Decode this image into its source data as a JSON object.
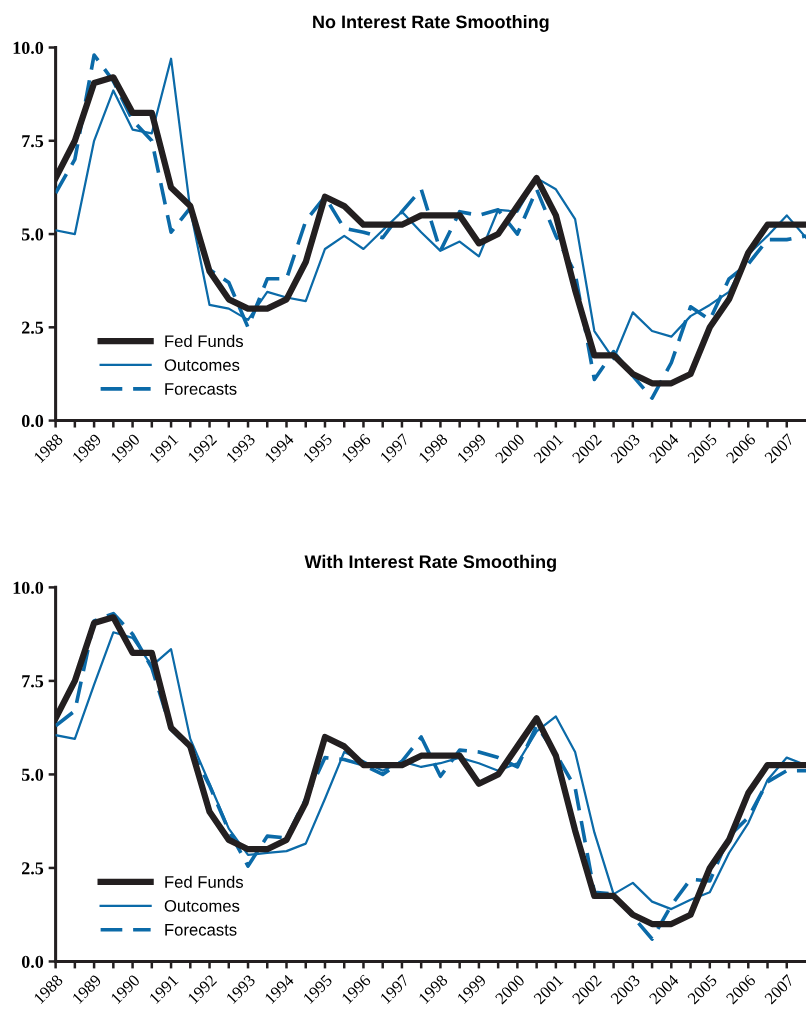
{
  "chart_data": [
    {
      "type": "line",
      "title": "No Interest Rate Smoothing",
      "x": [
        1988.0,
        1988.5,
        1989.0,
        1989.5,
        1990.0,
        1990.5,
        1991.0,
        1991.5,
        1992.0,
        1992.5,
        1993.0,
        1993.5,
        1994.0,
        1994.5,
        1995.0,
        1995.5,
        1996.0,
        1996.5,
        1997.0,
        1997.5,
        1998.0,
        1998.5,
        1999.0,
        1999.5,
        2000.0,
        2000.5,
        2001.0,
        2001.5,
        2002.0,
        2002.5,
        2003.0,
        2003.5,
        2004.0,
        2004.5,
        2005.0,
        2005.5,
        2006.0,
        2006.5,
        2007.0,
        2007.5
      ],
      "series": [
        {
          "name": "Fed Funds",
          "color": "#231f20",
          "line_style": "solid",
          "values": [
            6.5,
            7.5,
            9.05,
            9.2,
            8.25,
            8.25,
            6.25,
            5.75,
            4.0,
            3.25,
            3.0,
            3.0,
            3.25,
            4.25,
            6.0,
            5.75,
            5.25,
            5.25,
            5.25,
            5.5,
            5.5,
            5.5,
            4.75,
            5.0,
            5.75,
            6.5,
            5.5,
            3.5,
            1.75,
            1.75,
            1.25,
            1.0,
            1.0,
            1.25,
            2.5,
            3.25,
            4.5,
            5.25,
            5.25,
            5.25
          ]
        },
        {
          "name": "Outcomes",
          "color": "#0b6aa8",
          "line_style": "solid",
          "values": [
            5.1,
            5.0,
            7.5,
            8.85,
            7.8,
            7.7,
            9.7,
            5.65,
            3.1,
            3.0,
            2.7,
            3.45,
            3.3,
            3.2,
            4.6,
            4.95,
            4.6,
            5.1,
            5.6,
            5.05,
            4.55,
            4.8,
            4.4,
            5.65,
            5.6,
            6.5,
            6.2,
            5.4,
            2.4,
            1.65,
            2.9,
            2.4,
            2.25,
            2.8,
            3.1,
            3.45,
            4.45,
            4.95,
            5.5,
            4.9
          ]
        },
        {
          "name": "Forecasts",
          "color": "#0b6aa8",
          "line_style": "dashed",
          "values": [
            6.1,
            7.0,
            9.8,
            9.1,
            8.05,
            7.5,
            5.05,
            5.7,
            4.05,
            3.7,
            2.5,
            3.8,
            3.8,
            5.35,
            6.0,
            5.15,
            5.05,
            4.9,
            5.6,
            6.2,
            4.55,
            5.6,
            5.5,
            5.65,
            5.0,
            6.2,
            4.95,
            3.95,
            1.1,
            1.85,
            1.2,
            0.6,
            1.55,
            3.05,
            2.7,
            3.8,
            4.2,
            4.85,
            4.85,
            4.95
          ]
        }
      ],
      "xlim": [
        1988,
        2007.5
      ],
      "xticks": [
        1988,
        {
          "value": 1988.5,
          "label": null
        },
        1989,
        {
          "value": 1989.5,
          "label": null
        },
        1990,
        {
          "value": 1990.5,
          "label": null
        },
        1991,
        {
          "value": 1991.5,
          "label": null
        },
        1992,
        {
          "value": 1992.5,
          "label": null
        },
        1993,
        {
          "value": 1993.5,
          "label": null
        },
        1994,
        {
          "value": 1994.5,
          "label": null
        },
        1995,
        {
          "value": 1995.5,
          "label": null
        },
        1996,
        {
          "value": 1996.5,
          "label": null
        },
        1997,
        {
          "value": 1997.5,
          "label": null
        },
        1998,
        {
          "value": 1998.5,
          "label": null
        },
        1999,
        {
          "value": 1999.5,
          "label": null
        },
        2000,
        {
          "value": 2000.5,
          "label": null
        },
        2001,
        {
          "value": 2001.5,
          "label": null
        },
        2002,
        {
          "value": 2002.5,
          "label": null
        },
        2003,
        {
          "value": 2003.5,
          "label": null
        },
        2004,
        {
          "value": 2004.5,
          "label": null
        },
        2005,
        {
          "value": 2005.5,
          "label": null
        },
        2006,
        {
          "value": 2006.5,
          "label": null
        },
        2007
      ],
      "ylim": [
        0,
        10
      ],
      "yticks": [
        {
          "value": 0,
          "label": "0.0"
        },
        {
          "value": 2.5,
          "label": "2.5"
        },
        {
          "value": 5,
          "label": "5.0"
        },
        {
          "value": 7.5,
          "label": "7.5"
        },
        {
          "value": 10,
          "label": "10.0"
        }
      ],
      "legend": "bottom left",
      "grid": false
    },
    {
      "type": "line",
      "title": "With Interest Rate Smoothing",
      "x": [
        1988.0,
        1988.5,
        1989.0,
        1989.5,
        1990.0,
        1990.5,
        1991.0,
        1991.5,
        1992.0,
        1992.5,
        1993.0,
        1993.5,
        1994.0,
        1994.5,
        1995.0,
        1995.5,
        1996.0,
        1996.5,
        1997.0,
        1997.5,
        1998.0,
        1998.5,
        1999.0,
        1999.5,
        2000.0,
        2000.5,
        2001.0,
        2001.5,
        2002.0,
        2002.5,
        2003.0,
        2003.5,
        2004.0,
        2004.5,
        2005.0,
        2005.5,
        2006.0,
        2006.5,
        2007.0,
        2007.5
      ],
      "series": [
        {
          "name": "Fed Funds",
          "color": "#231f20",
          "line_style": "solid",
          "values": [
            6.5,
            7.5,
            9.05,
            9.2,
            8.25,
            8.25,
            6.25,
            5.75,
            4.0,
            3.25,
            3.0,
            3.0,
            3.25,
            4.25,
            6.0,
            5.75,
            5.25,
            5.25,
            5.25,
            5.5,
            5.5,
            5.5,
            4.75,
            5.0,
            5.75,
            6.5,
            5.5,
            3.5,
            1.75,
            1.75,
            1.25,
            1.0,
            1.0,
            1.25,
            2.5,
            3.25,
            4.5,
            5.25,
            5.25,
            5.25
          ]
        },
        {
          "name": "Outcomes",
          "color": "#0b6aa8",
          "line_style": "solid",
          "values": [
            6.05,
            5.95,
            7.4,
            8.8,
            8.65,
            7.9,
            8.35,
            5.95,
            4.75,
            3.55,
            2.85,
            2.9,
            2.95,
            3.15,
            4.35,
            5.6,
            5.35,
            5.1,
            5.35,
            5.2,
            5.3,
            5.45,
            5.3,
            5.1,
            5.3,
            6.15,
            6.55,
            5.6,
            3.45,
            1.8,
            2.1,
            1.6,
            1.4,
            1.65,
            1.85,
            2.9,
            3.7,
            4.85,
            5.45,
            5.25
          ]
        },
        {
          "name": "Forecasts",
          "color": "#0b6aa8",
          "line_style": "dashed",
          "values": [
            6.3,
            6.7,
            9.1,
            9.3,
            8.75,
            7.85,
            6.2,
            5.7,
            4.7,
            3.5,
            2.55,
            3.35,
            3.3,
            4.35,
            5.45,
            5.4,
            5.25,
            5.0,
            5.35,
            6.0,
            4.95,
            5.65,
            5.6,
            5.45,
            5.2,
            6.3,
            5.55,
            4.65,
            1.85,
            1.8,
            1.2,
            0.6,
            1.5,
            2.2,
            2.15,
            3.35,
            3.85,
            4.8,
            5.1,
            5.1
          ]
        }
      ],
      "xlim": [
        1988,
        2007.5
      ],
      "xticks": [
        1988,
        {
          "value": 1988.5,
          "label": null
        },
        1989,
        {
          "value": 1989.5,
          "label": null
        },
        1990,
        {
          "value": 1990.5,
          "label": null
        },
        1991,
        {
          "value": 1991.5,
          "label": null
        },
        1992,
        {
          "value": 1992.5,
          "label": null
        },
        1993,
        {
          "value": 1993.5,
          "label": null
        },
        1994,
        {
          "value": 1994.5,
          "label": null
        },
        1995,
        {
          "value": 1995.5,
          "label": null
        },
        1996,
        {
          "value": 1996.5,
          "label": null
        },
        1997,
        {
          "value": 1997.5,
          "label": null
        },
        1998,
        {
          "value": 1998.5,
          "label": null
        },
        1999,
        {
          "value": 1999.5,
          "label": null
        },
        2000,
        {
          "value": 2000.5,
          "label": null
        },
        2001,
        {
          "value": 2001.5,
          "label": null
        },
        2002,
        {
          "value": 2002.5,
          "label": null
        },
        2003,
        {
          "value": 2003.5,
          "label": null
        },
        2004,
        {
          "value": 2004.5,
          "label": null
        },
        2005,
        {
          "value": 2005.5,
          "label": null
        },
        2006,
        {
          "value": 2006.5,
          "label": null
        },
        2007
      ],
      "ylim": [
        0,
        10
      ],
      "yticks": [
        {
          "value": 0,
          "label": "0.0"
        },
        {
          "value": 2.5,
          "label": "2.5"
        },
        {
          "value": 5,
          "label": "5.0"
        },
        {
          "value": 7.5,
          "label": "7.5"
        },
        {
          "value": 10,
          "label": "10.0"
        }
      ],
      "legend": "bottom left",
      "grid": false
    }
  ]
}
